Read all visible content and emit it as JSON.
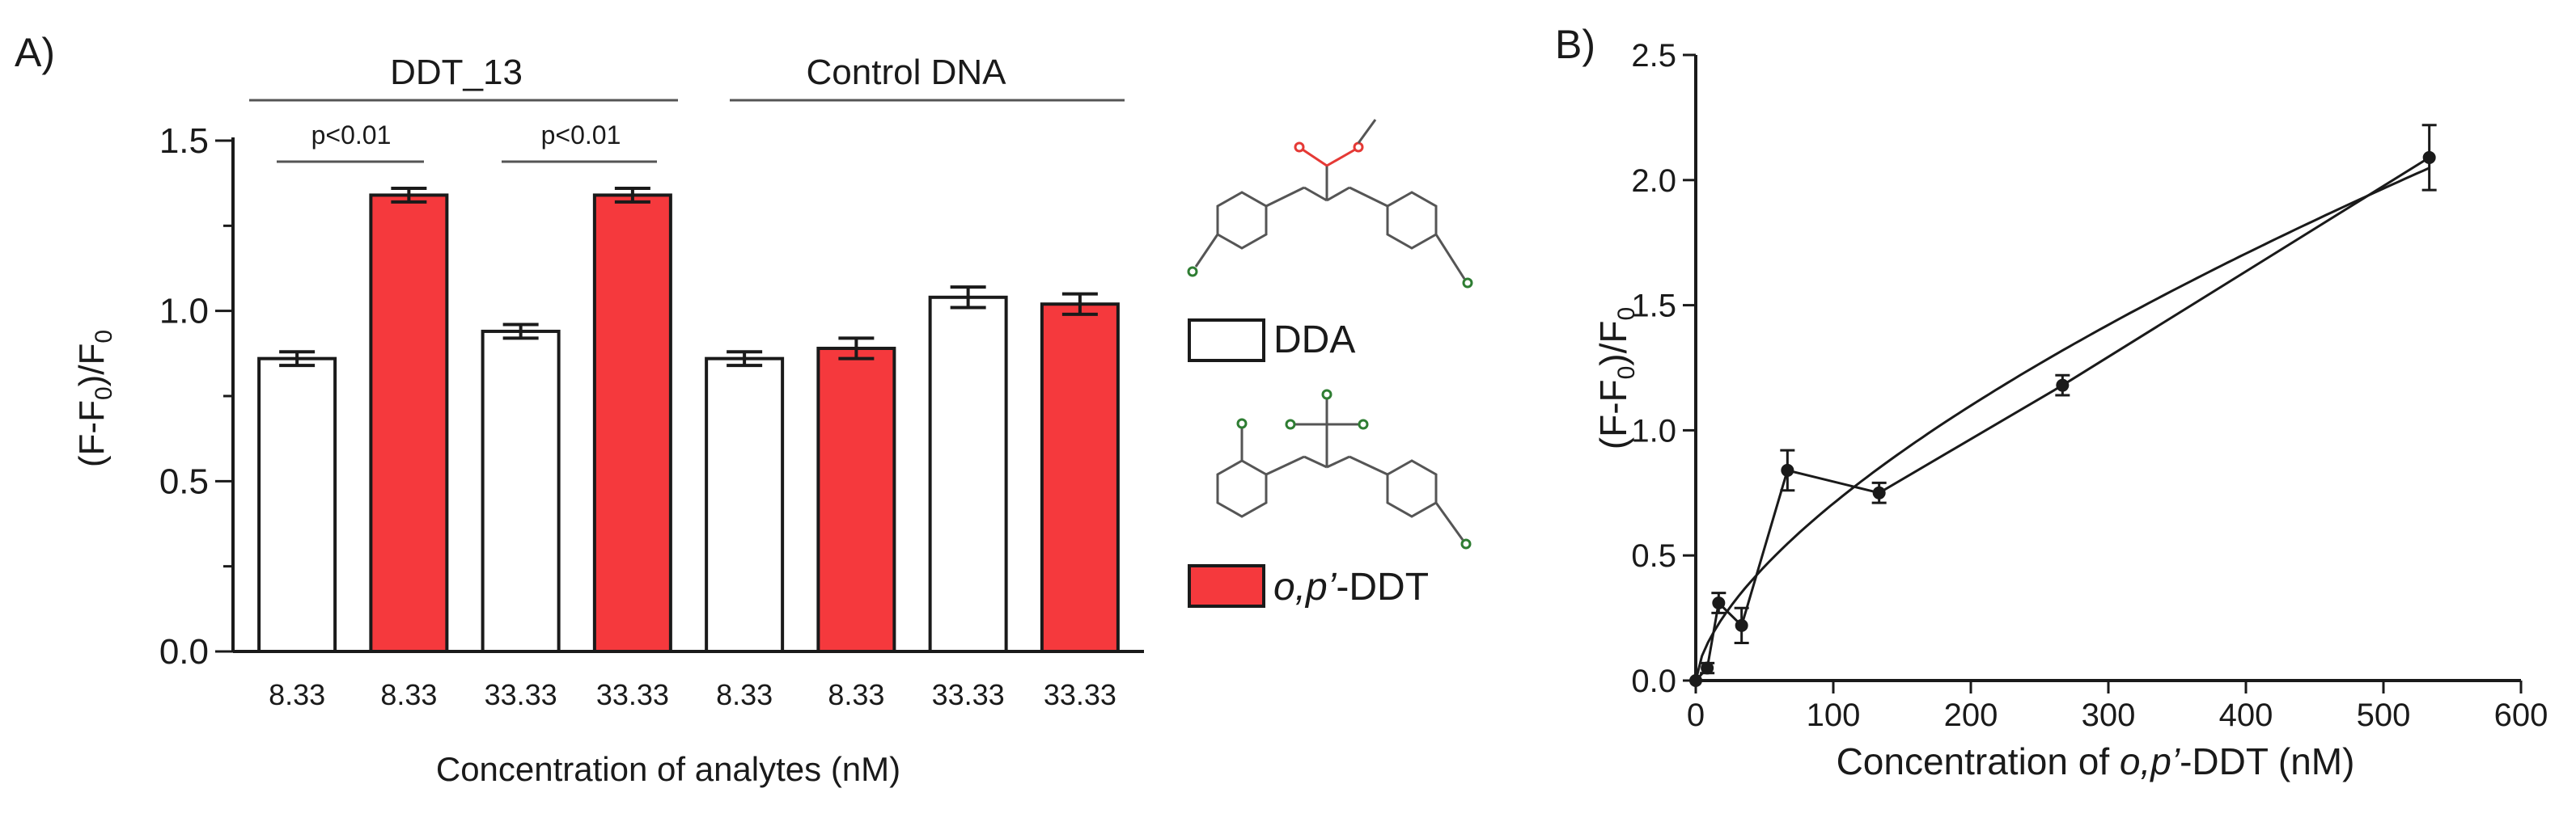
{
  "colors": {
    "ddt": "#f5393d",
    "dda": "#ffffff",
    "ink": "#1a1a1a",
    "oxygen": "#e53935",
    "chlorine": "#2e7d32"
  },
  "chart_data": [
    {
      "type": "bar",
      "panel_label": "A)",
      "xlabel": "Concentration of analytes (nM)",
      "ylabel": "(F-F₀)/F₀",
      "ylim": [
        0,
        1.5
      ],
      "yticks": [
        "0.0",
        "0.5",
        "1.0",
        "1.5"
      ],
      "categories": [
        "8.33",
        "8.33",
        "33.33",
        "33.33",
        "8.33",
        "8.33",
        "33.33",
        "33.33"
      ],
      "bars": [
        {
          "analyte": "DDA",
          "value": 0.86,
          "error": 0.02
        },
        {
          "analyte": "o,p'-DDT",
          "value": 1.34,
          "error": 0.02
        },
        {
          "analyte": "DDA",
          "value": 0.94,
          "error": 0.02
        },
        {
          "analyte": "o,p'-DDT",
          "value": 1.34,
          "error": 0.02
        },
        {
          "analyte": "DDA",
          "value": 0.86,
          "error": 0.02
        },
        {
          "analyte": "o,p'-DDT",
          "value": 0.89,
          "error": 0.03
        },
        {
          "analyte": "DDA",
          "value": 1.04,
          "error": 0.03
        },
        {
          "analyte": "o,p'-DDT",
          "value": 1.02,
          "error": 0.03
        }
      ],
      "groups": [
        "DDT_13",
        "Control DNA"
      ],
      "annotations": [
        "p<0.01",
        "p<0.01"
      ],
      "legend": [
        "DDA",
        "o,p'-DDT"
      ],
      "grid": false
    },
    {
      "type": "line",
      "panel_label": "B)",
      "xlabel": "Concentration of o,p'-DDT (nM)",
      "ylabel": "(F-F₀)/F₀",
      "xlim": [
        0,
        600
      ],
      "ylim": [
        0,
        2.5
      ],
      "xticks": [
        "0",
        "100",
        "200",
        "300",
        "400",
        "500",
        "600"
      ],
      "yticks": [
        "0.0",
        "0.5",
        "1.0",
        "1.5",
        "2.0",
        "2.5"
      ],
      "x": [
        0,
        8.33,
        16.67,
        33.33,
        66.67,
        133.33,
        266.67,
        533.33
      ],
      "y": [
        0.0,
        0.05,
        0.31,
        0.22,
        0.84,
        0.75,
        1.18,
        2.09
      ],
      "yerr": [
        0.0,
        0.02,
        0.04,
        0.07,
        0.08,
        0.04,
        0.04,
        0.13
      ],
      "fit": {
        "a": 0.038,
        "b": 0.635
      },
      "grid": false
    }
  ]
}
